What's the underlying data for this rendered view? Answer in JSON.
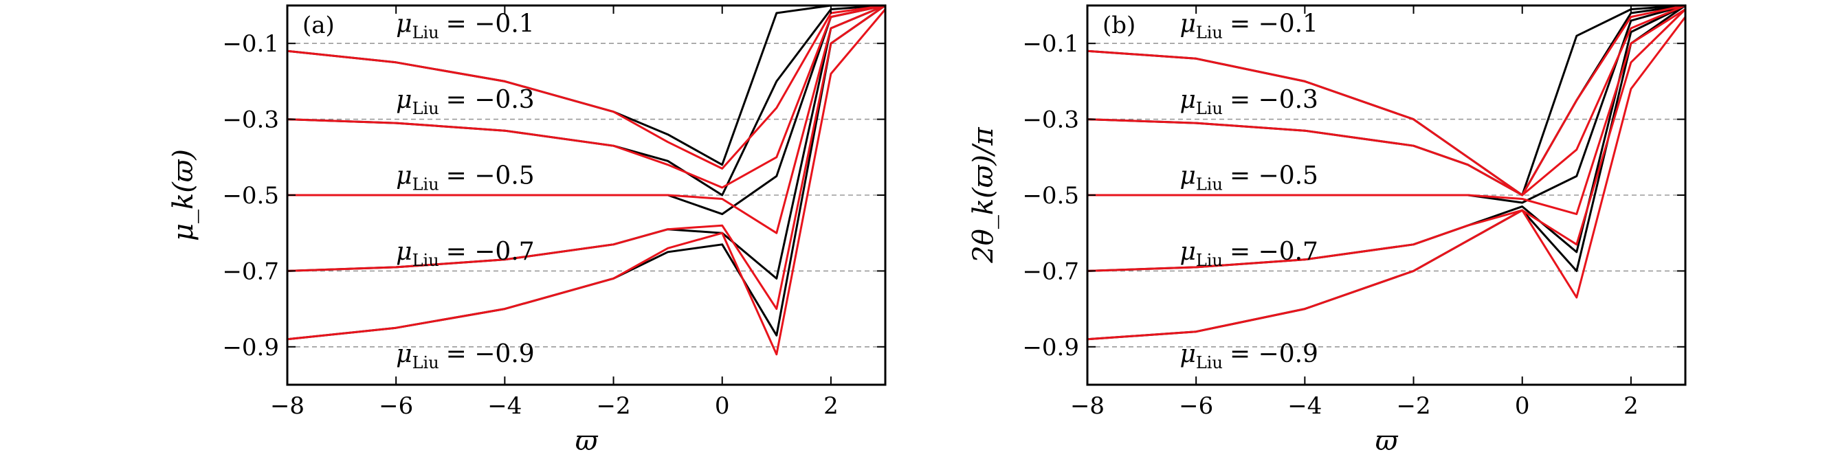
{
  "chart_data": [
    {
      "panel_label": "(a)",
      "type": "line",
      "xlabel": "ϖ",
      "ylabel": "μ_k(ϖ)",
      "xlim": [
        -8,
        3
      ],
      "ylim": [
        -1.0,
        0.0
      ],
      "xticks": [
        {
          "value": -8,
          "label": "−8"
        },
        {
          "value": -6,
          "label": "−6"
        },
        {
          "value": -4,
          "label": "−4"
        },
        {
          "value": -2,
          "label": "−2"
        },
        {
          "value": 0,
          "label": "0"
        },
        {
          "value": 2,
          "label": "2"
        }
      ],
      "yticks": [
        {
          "value": -0.1,
          "label": "−0.1"
        },
        {
          "value": -0.3,
          "label": "−0.3"
        },
        {
          "value": -0.5,
          "label": "−0.5"
        },
        {
          "value": -0.7,
          "label": "−0.7"
        },
        {
          "value": -0.9,
          "label": "−0.9"
        }
      ],
      "grid": "horizontal dashed at y ticks",
      "annotations": [
        {
          "symbol": "μ",
          "subscript": "Liu",
          "value": "= −0.1"
        },
        {
          "symbol": "μ",
          "subscript": "Liu",
          "value": "= −0.3"
        },
        {
          "symbol": "μ",
          "subscript": "Liu",
          "value": "= −0.5"
        },
        {
          "symbol": "μ",
          "subscript": "Liu",
          "value": "= −0.7"
        },
        {
          "symbol": "μ",
          "subscript": "Liu",
          "value": "= −0.9"
        }
      ],
      "series": [
        {
          "color": "#000000",
          "x": [
            -8,
            -6,
            -4,
            -2,
            -1,
            0,
            1,
            2,
            3
          ],
          "y": [
            -0.12,
            -0.15,
            -0.2,
            -0.28,
            -0.34,
            -0.42,
            -0.02,
            0.0,
            0.0
          ]
        },
        {
          "color": "#000000",
          "x": [
            -8,
            -6,
            -4,
            -2,
            -1,
            0,
            1,
            2,
            3
          ],
          "y": [
            -0.3,
            -0.31,
            -0.33,
            -0.37,
            -0.41,
            -0.5,
            -0.2,
            -0.01,
            0.0
          ]
        },
        {
          "color": "#000000",
          "x": [
            -8,
            -6,
            -4,
            -2,
            -1,
            0,
            1,
            2,
            3
          ],
          "y": [
            -0.5,
            -0.5,
            -0.5,
            -0.5,
            -0.5,
            -0.55,
            -0.45,
            -0.03,
            0.0
          ]
        },
        {
          "color": "#000000",
          "x": [
            -8,
            -6,
            -4,
            -2,
            -1,
            0,
            1,
            2,
            3
          ],
          "y": [
            -0.7,
            -0.69,
            -0.67,
            -0.63,
            -0.59,
            -0.6,
            -0.72,
            -0.06,
            0.0
          ]
        },
        {
          "color": "#000000",
          "x": [
            -8,
            -6,
            -4,
            -2,
            -1,
            0,
            1,
            2,
            3
          ],
          "y": [
            -0.88,
            -0.85,
            -0.8,
            -0.72,
            -0.65,
            -0.63,
            -0.87,
            -0.1,
            0.0
          ]
        },
        {
          "color": "#e8141c",
          "x": [
            -8,
            -6,
            -4,
            -2,
            -1,
            0,
            1,
            2,
            3
          ],
          "y": [
            -0.12,
            -0.15,
            -0.2,
            -0.28,
            -0.36,
            -0.43,
            -0.27,
            -0.02,
            0.0
          ]
        },
        {
          "color": "#e8141c",
          "x": [
            -8,
            -6,
            -4,
            -2,
            -1,
            0,
            1,
            2,
            3
          ],
          "y": [
            -0.3,
            -0.31,
            -0.33,
            -0.37,
            -0.42,
            -0.48,
            -0.4,
            -0.03,
            0.0
          ]
        },
        {
          "color": "#e8141c",
          "x": [
            -8,
            -6,
            -4,
            -2,
            -1,
            0,
            1,
            2,
            3
          ],
          "y": [
            -0.5,
            -0.5,
            -0.5,
            -0.5,
            -0.5,
            -0.51,
            -0.6,
            -0.06,
            0.0
          ]
        },
        {
          "color": "#e8141c",
          "x": [
            -8,
            -6,
            -4,
            -2,
            -1,
            0,
            1,
            2,
            3
          ],
          "y": [
            -0.7,
            -0.69,
            -0.67,
            -0.63,
            -0.59,
            -0.58,
            -0.8,
            -0.1,
            0.0
          ]
        },
        {
          "color": "#e8141c",
          "x": [
            -8,
            -6,
            -4,
            -2,
            -1,
            0,
            1,
            2,
            3
          ],
          "y": [
            -0.88,
            -0.85,
            -0.8,
            -0.72,
            -0.64,
            -0.6,
            -0.92,
            -0.18,
            -0.01
          ]
        }
      ]
    },
    {
      "panel_label": "(b)",
      "type": "line",
      "xlabel": "ϖ",
      "ylabel": "2θ_k(ϖ)/π",
      "xlim": [
        -8,
        3
      ],
      "ylim": [
        -1.0,
        0.0
      ],
      "xticks": [
        {
          "value": -8,
          "label": "−8"
        },
        {
          "value": -6,
          "label": "−6"
        },
        {
          "value": -4,
          "label": "−4"
        },
        {
          "value": -2,
          "label": "−2"
        },
        {
          "value": 0,
          "label": "0"
        },
        {
          "value": 2,
          "label": "2"
        }
      ],
      "yticks": [
        {
          "value": -0.1,
          "label": "−0.1"
        },
        {
          "value": -0.3,
          "label": "−0.3"
        },
        {
          "value": -0.5,
          "label": "−0.5"
        },
        {
          "value": -0.7,
          "label": "−0.7"
        },
        {
          "value": -0.9,
          "label": "−0.9"
        }
      ],
      "grid": "horizontal dashed at y ticks",
      "annotations": [
        {
          "symbol": "μ",
          "subscript": "Liu",
          "value": "= −0.1"
        },
        {
          "symbol": "μ",
          "subscript": "Liu",
          "value": "= −0.3"
        },
        {
          "symbol": "μ",
          "subscript": "Liu",
          "value": "= −0.5"
        },
        {
          "symbol": "μ",
          "subscript": "Liu",
          "value": "= −0.7"
        },
        {
          "symbol": "μ",
          "subscript": "Liu",
          "value": "= −0.9"
        }
      ],
      "series": [
        {
          "color": "#000000",
          "x": [
            -8,
            -6,
            -4,
            -2,
            -1,
            0,
            1,
            2,
            3
          ],
          "y": [
            -0.12,
            -0.14,
            -0.2,
            -0.3,
            -0.4,
            -0.5,
            -0.08,
            -0.01,
            0.0
          ]
        },
        {
          "color": "#000000",
          "x": [
            -8,
            -6,
            -4,
            -2,
            -1,
            0,
            1,
            2,
            3
          ],
          "y": [
            -0.3,
            -0.31,
            -0.33,
            -0.37,
            -0.42,
            -0.5,
            -0.25,
            -0.02,
            0.0
          ]
        },
        {
          "color": "#000000",
          "x": [
            -8,
            -6,
            -4,
            -2,
            -1,
            0,
            1,
            2,
            3
          ],
          "y": [
            -0.5,
            -0.5,
            -0.5,
            -0.5,
            -0.5,
            -0.52,
            -0.45,
            -0.04,
            0.0
          ]
        },
        {
          "color": "#000000",
          "x": [
            -8,
            -6,
            -4,
            -2,
            -1,
            0,
            1,
            2,
            3
          ],
          "y": [
            -0.7,
            -0.69,
            -0.67,
            -0.63,
            -0.58,
            -0.53,
            -0.65,
            -0.07,
            0.0
          ]
        },
        {
          "color": "#000000",
          "x": [
            -8,
            -6,
            -4,
            -2,
            -1,
            0,
            1,
            2,
            3
          ],
          "y": [
            -0.88,
            -0.86,
            -0.8,
            -0.7,
            -0.62,
            -0.54,
            -0.7,
            -0.1,
            0.0
          ]
        },
        {
          "color": "#e8141c",
          "x": [
            -8,
            -6,
            -4,
            -2,
            -1,
            0,
            1,
            2,
            3
          ],
          "y": [
            -0.12,
            -0.14,
            -0.2,
            -0.3,
            -0.4,
            -0.5,
            -0.25,
            -0.03,
            0.0
          ]
        },
        {
          "color": "#e8141c",
          "x": [
            -8,
            -6,
            -4,
            -2,
            -1,
            0,
            1,
            2,
            3
          ],
          "y": [
            -0.3,
            -0.31,
            -0.33,
            -0.37,
            -0.42,
            -0.5,
            -0.38,
            -0.06,
            0.0
          ]
        },
        {
          "color": "#e8141c",
          "x": [
            -8,
            -6,
            -4,
            -2,
            -1,
            0,
            1,
            2,
            3
          ],
          "y": [
            -0.5,
            -0.5,
            -0.5,
            -0.5,
            -0.5,
            -0.51,
            -0.55,
            -0.1,
            -0.01
          ]
        },
        {
          "color": "#e8141c",
          "x": [
            -8,
            -6,
            -4,
            -2,
            -1,
            0,
            1,
            2,
            3
          ],
          "y": [
            -0.7,
            -0.69,
            -0.67,
            -0.63,
            -0.58,
            -0.54,
            -0.63,
            -0.15,
            -0.01
          ]
        },
        {
          "color": "#e8141c",
          "x": [
            -8,
            -6,
            -4,
            -2,
            -1,
            0,
            1,
            2,
            3
          ],
          "y": [
            -0.88,
            -0.86,
            -0.8,
            -0.7,
            -0.62,
            -0.54,
            -0.77,
            -0.22,
            -0.03
          ]
        }
      ]
    }
  ]
}
